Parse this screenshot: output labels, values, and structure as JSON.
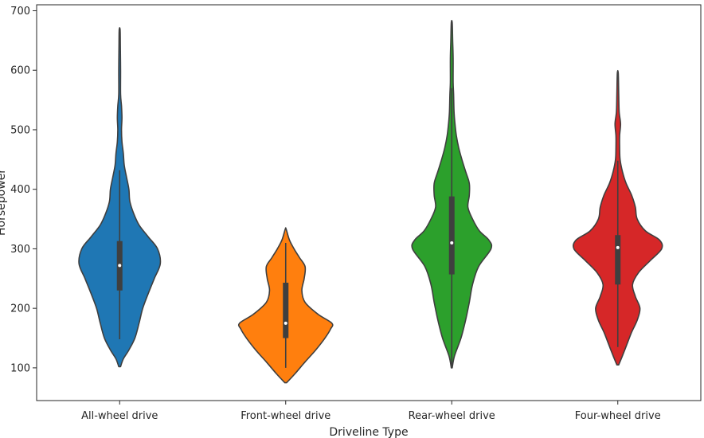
{
  "chart_data": {
    "type": "violin",
    "title": "",
    "xlabel": "Driveline Type",
    "ylabel": "Horsepower",
    "ylim": [
      45,
      710
    ],
    "yticks": [
      100,
      200,
      300,
      400,
      500,
      600,
      700
    ],
    "grid": false,
    "categories": [
      "All-wheel drive",
      "Front-wheel drive",
      "Rear-wheel drive",
      "Four-wheel drive"
    ],
    "series": [
      {
        "name": "All-wheel drive",
        "color": "#1f77b4",
        "median": 272,
        "q1": 230,
        "q3": 313,
        "whisker_low": 148,
        "whisker_high": 432,
        "min": 102,
        "max": 668,
        "density": [
          [
            102,
            0.02
          ],
          [
            115,
            0.08
          ],
          [
            130,
            0.2
          ],
          [
            150,
            0.33
          ],
          [
            175,
            0.42
          ],
          [
            200,
            0.5
          ],
          [
            225,
            0.62
          ],
          [
            250,
            0.75
          ],
          [
            275,
            0.88
          ],
          [
            300,
            0.82
          ],
          [
            320,
            0.62
          ],
          [
            340,
            0.42
          ],
          [
            360,
            0.3
          ],
          [
            380,
            0.22
          ],
          [
            400,
            0.2
          ],
          [
            420,
            0.15
          ],
          [
            440,
            0.1
          ],
          [
            460,
            0.08
          ],
          [
            480,
            0.05
          ],
          [
            500,
            0.04
          ],
          [
            520,
            0.05
          ],
          [
            540,
            0.04
          ],
          [
            560,
            0.02
          ],
          [
            600,
            0.02
          ],
          [
            640,
            0.015
          ],
          [
            668,
            0.01
          ]
        ]
      },
      {
        "name": "Front-wheel drive",
        "color": "#ff7f0e",
        "median": 175,
        "q1": 150,
        "q3": 243,
        "whisker_low": 100,
        "whisker_high": 310,
        "min": 75,
        "max": 333,
        "density": [
          [
            75,
            0.02
          ],
          [
            90,
            0.2
          ],
          [
            110,
            0.42
          ],
          [
            130,
            0.65
          ],
          [
            150,
            0.85
          ],
          [
            165,
            0.97
          ],
          [
            175,
            1.0
          ],
          [
            190,
            0.7
          ],
          [
            210,
            0.42
          ],
          [
            230,
            0.35
          ],
          [
            250,
            0.4
          ],
          [
            270,
            0.42
          ],
          [
            285,
            0.3
          ],
          [
            300,
            0.18
          ],
          [
            315,
            0.08
          ],
          [
            333,
            0.01
          ]
        ]
      },
      {
        "name": "Rear-wheel drive",
        "color": "#2ca02c",
        "median": 310,
        "q1": 257,
        "q3": 388,
        "whisker_low": 103,
        "whisker_high": 570,
        "min": 100,
        "max": 680,
        "density": [
          [
            100,
            0.01
          ],
          [
            120,
            0.06
          ],
          [
            150,
            0.2
          ],
          [
            180,
            0.3
          ],
          [
            210,
            0.38
          ],
          [
            240,
            0.45
          ],
          [
            270,
            0.58
          ],
          [
            300,
            0.85
          ],
          [
            315,
            0.8
          ],
          [
            330,
            0.6
          ],
          [
            350,
            0.45
          ],
          [
            370,
            0.35
          ],
          [
            390,
            0.38
          ],
          [
            410,
            0.38
          ],
          [
            430,
            0.3
          ],
          [
            450,
            0.22
          ],
          [
            470,
            0.15
          ],
          [
            490,
            0.1
          ],
          [
            510,
            0.07
          ],
          [
            530,
            0.05
          ],
          [
            560,
            0.04
          ],
          [
            580,
            0.03
          ],
          [
            620,
            0.03
          ],
          [
            650,
            0.02
          ],
          [
            680,
            0.01
          ]
        ]
      },
      {
        "name": "Four-wheel drive",
        "color": "#d62728",
        "median": 302,
        "q1": 240,
        "q3": 323,
        "whisker_low": 135,
        "whisker_high": 448,
        "min": 105,
        "max": 595,
        "density": [
          [
            105,
            0.02
          ],
          [
            120,
            0.1
          ],
          [
            140,
            0.2
          ],
          [
            160,
            0.3
          ],
          [
            180,
            0.42
          ],
          [
            200,
            0.48
          ],
          [
            220,
            0.38
          ],
          [
            240,
            0.32
          ],
          [
            260,
            0.45
          ],
          [
            280,
            0.7
          ],
          [
            300,
            0.95
          ],
          [
            315,
            0.9
          ],
          [
            330,
            0.6
          ],
          [
            350,
            0.42
          ],
          [
            370,
            0.38
          ],
          [
            390,
            0.3
          ],
          [
            410,
            0.18
          ],
          [
            430,
            0.1
          ],
          [
            450,
            0.05
          ],
          [
            470,
            0.04
          ],
          [
            490,
            0.04
          ],
          [
            510,
            0.06
          ],
          [
            530,
            0.03
          ],
          [
            560,
            0.02
          ],
          [
            595,
            0.01
          ]
        ]
      }
    ]
  }
}
